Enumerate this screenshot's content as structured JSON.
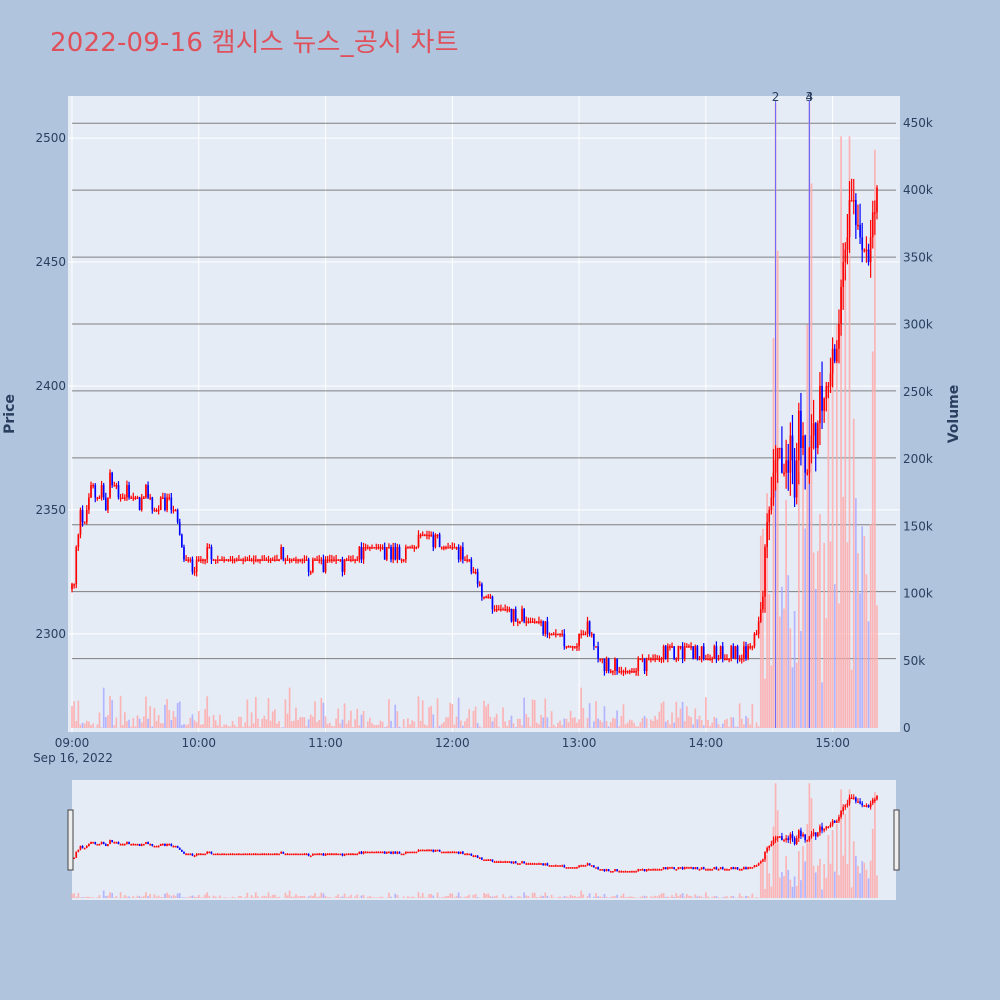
{
  "title": "2022-09-16 캠시스 뉴스_공시 차트",
  "colors": {
    "background": "#b0c4de",
    "plot_bg": "#e5ecf6",
    "up": "#ff0000",
    "down": "#0000ff",
    "volume_up": "#ffaaaa",
    "volume_down": "#aaaaff",
    "title": "#e0505a"
  },
  "chart_data": {
    "type": "candlestick",
    "ylabel": "Price",
    "y2label": "Volume",
    "xlabel": "",
    "price_range": [
      2262,
      2517
    ],
    "volume_range": [
      0,
      470000
    ],
    "price_ticks": [
      "2300",
      "2350",
      "2400",
      "2450",
      "2500"
    ],
    "volume_ticks": [
      "0",
      "50k",
      "100k",
      "150k",
      "200k",
      "250k",
      "300k",
      "350k",
      "400k",
      "450k"
    ],
    "time_ticks": [
      "09:00",
      "10:00",
      "11:00",
      "12:00",
      "13:00",
      "14:00",
      "15:00"
    ],
    "date_label": "Sep 16, 2022",
    "x_range_minutes": [
      540,
      930
    ],
    "news_lines": [
      {
        "minutes": 873,
        "label": "2"
      },
      {
        "minutes": 889,
        "label": "3"
      },
      {
        "minutes": 889,
        "label": "4"
      }
    ],
    "horizontal_lines": [
      2290,
      2317,
      2344,
      2371,
      2398,
      2425,
      2452,
      2479,
      2506
    ],
    "price_waypoints": [
      [
        540,
        2318
      ],
      [
        541,
        2320
      ],
      [
        542,
        2335
      ],
      [
        543,
        2340
      ],
      [
        544,
        2350
      ],
      [
        546,
        2342
      ],
      [
        548,
        2355
      ],
      [
        550,
        2360
      ],
      [
        552,
        2355
      ],
      [
        554,
        2358
      ],
      [
        556,
        2352
      ],
      [
        558,
        2362
      ],
      [
        560,
        2362
      ],
      [
        563,
        2355
      ],
      [
        566,
        2358
      ],
      [
        570,
        2352
      ],
      [
        575,
        2356
      ],
      [
        580,
        2350
      ],
      [
        585,
        2354
      ],
      [
        588,
        2352
      ],
      [
        590,
        2343
      ],
      [
        592,
        2335
      ],
      [
        595,
        2328
      ],
      [
        600,
        2330
      ],
      [
        605,
        2332
      ],
      [
        610,
        2328
      ],
      [
        620,
        2331
      ],
      [
        630,
        2330
      ],
      [
        640,
        2332
      ],
      [
        650,
        2328
      ],
      [
        660,
        2329
      ],
      [
        670,
        2328
      ],
      [
        680,
        2336
      ],
      [
        690,
        2333
      ],
      [
        700,
        2332
      ],
      [
        705,
        2340
      ],
      [
        710,
        2340
      ],
      [
        715,
        2336
      ],
      [
        720,
        2333
      ],
      [
        725,
        2331
      ],
      [
        730,
        2324
      ],
      [
        735,
        2314
      ],
      [
        740,
        2311
      ],
      [
        750,
        2307
      ],
      [
        760,
        2305
      ],
      [
        765,
        2300
      ],
      [
        770,
        2300
      ],
      [
        775,
        2295
      ],
      [
        780,
        2298
      ],
      [
        785,
        2303
      ],
      [
        790,
        2290
      ],
      [
        795,
        2286
      ],
      [
        800,
        2285
      ],
      [
        805,
        2286
      ],
      [
        810,
        2288
      ],
      [
        820,
        2292
      ],
      [
        830,
        2293
      ],
      [
        840,
        2291
      ],
      [
        850,
        2292
      ],
      [
        860,
        2293
      ],
      [
        862,
        2298
      ],
      [
        864,
        2300
      ],
      [
        866,
        2310
      ],
      [
        868,
        2330
      ],
      [
        870,
        2345
      ],
      [
        872,
        2370
      ],
      [
        874,
        2380
      ],
      [
        876,
        2370
      ],
      [
        878,
        2365
      ],
      [
        880,
        2372
      ],
      [
        882,
        2358
      ],
      [
        884,
        2385
      ],
      [
        886,
        2372
      ],
      [
        888,
        2362
      ],
      [
        890,
        2385
      ],
      [
        892,
        2378
      ],
      [
        894,
        2400
      ],
      [
        896,
        2395
      ],
      [
        898,
        2405
      ],
      [
        900,
        2410
      ],
      [
        902,
        2420
      ],
      [
        904,
        2445
      ],
      [
        906,
        2458
      ],
      [
        908,
        2470
      ],
      [
        910,
        2472
      ],
      [
        912,
        2460
      ],
      [
        914,
        2455
      ],
      [
        916,
        2450
      ],
      [
        918,
        2456
      ],
      [
        920,
        2472
      ],
      [
        921,
        2482
      ]
    ],
    "volume_spikes": [
      {
        "minutes": 873,
        "value": 465000
      },
      {
        "minutes": 874,
        "value": 355000
      },
      {
        "minutes": 872,
        "value": 290000
      },
      {
        "minutes": 889,
        "value": 465000
      },
      {
        "minutes": 890,
        "value": 405000
      },
      {
        "minutes": 888,
        "value": 300000
      },
      {
        "minutes": 886,
        "value": 210000
      },
      {
        "minutes": 884,
        "value": 190000
      },
      {
        "minutes": 898,
        "value": 255000
      },
      {
        "minutes": 900,
        "value": 275000
      },
      {
        "minutes": 902,
        "value": 300000
      },
      {
        "minutes": 904,
        "value": 440000
      },
      {
        "minutes": 906,
        "value": 340000
      },
      {
        "minutes": 908,
        "value": 440000
      },
      {
        "minutes": 910,
        "value": 230000
      },
      {
        "minutes": 914,
        "value": 150000
      },
      {
        "minutes": 920,
        "value": 430000
      },
      {
        "minutes": 919,
        "value": 280000
      }
    ]
  }
}
